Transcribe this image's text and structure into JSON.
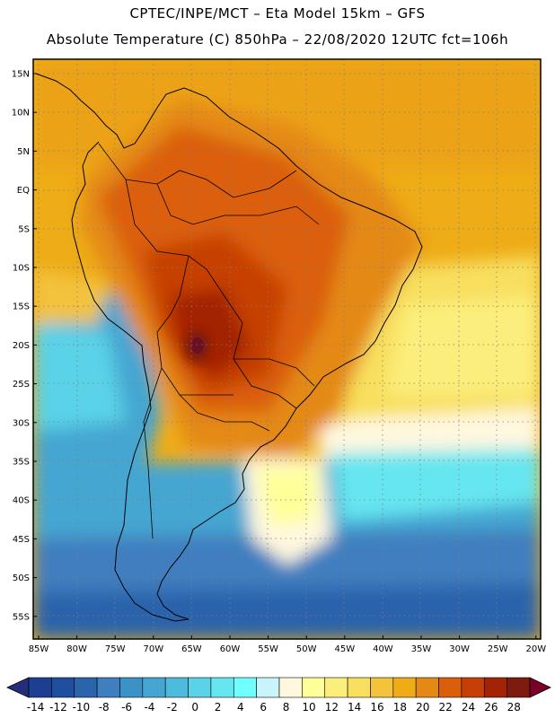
{
  "header": {
    "line1": "CPTEC/INPE/MCT –  Eta Model 15km – GFS",
    "line2": "Absolute Temperature (C) 850hPa – 22/08/2020 12UTC fct=106h"
  },
  "map": {
    "lat_labels": [
      "15N",
      "10N",
      "5N",
      "EQ",
      "5S",
      "10S",
      "15S",
      "20S",
      "25S",
      "30S",
      "35S",
      "40S",
      "45S",
      "50S",
      "55S"
    ],
    "lon_labels": [
      "85W",
      "80W",
      "75W",
      "70W",
      "65W",
      "60W",
      "55W",
      "50W",
      "45W",
      "40W",
      "35W",
      "30W",
      "25W",
      "20W"
    ],
    "region": "South America",
    "grid": "dotted"
  },
  "colorbar": {
    "labels": [
      "-14",
      "-12",
      "-10",
      "-8",
      "-6",
      "-4",
      "-2",
      "0",
      "2",
      "4",
      "6",
      "8",
      "10",
      "12",
      "14",
      "16",
      "18",
      "20",
      "22",
      "24",
      "26",
      "28"
    ],
    "colors": [
      "#1c3f94",
      "#1f4f9e",
      "#2a64ab",
      "#3f7ebf",
      "#3a92c6",
      "#45a6d2",
      "#4dbbdd",
      "#5ad2e8",
      "#66e6f0",
      "#70ffff",
      "#c9f4fb",
      "#fff8df",
      "#ffff99",
      "#fbee7b",
      "#f8df5f",
      "#f3c33c",
      "#eeac17",
      "#e48916",
      "#db5f0a",
      "#c63f05",
      "#a32404",
      "#7e1b0e"
    ],
    "under_color": "#252e7a",
    "over_color": "#7b0029"
  }
}
